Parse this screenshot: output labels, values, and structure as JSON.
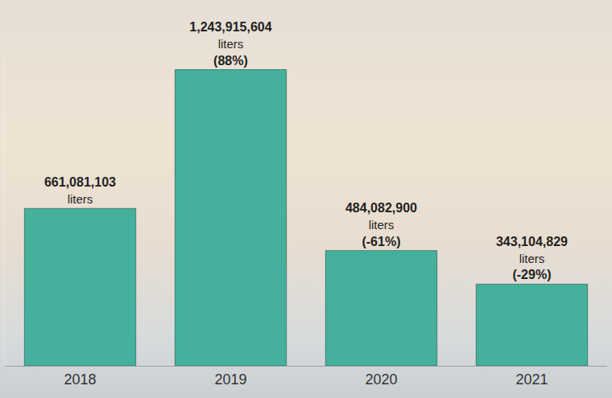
{
  "chart_data": {
    "type": "bar",
    "categories": [
      "2018",
      "2019",
      "2020",
      "2021"
    ],
    "values": [
      661081103,
      1243915604,
      484082900,
      343104829
    ],
    "value_labels": [
      "661,081,103 liters",
      "1,243,915,604 liters",
      "484,082,900 liters",
      "343,104,829 liters"
    ],
    "change_labels": [
      null,
      "(88%)",
      "(-61%)",
      "(-29%)"
    ],
    "color": "#45b09c",
    "ylim": [
      0,
      1300000000
    ],
    "data_labels": true,
    "tick_labels": "x",
    "grid": false
  }
}
